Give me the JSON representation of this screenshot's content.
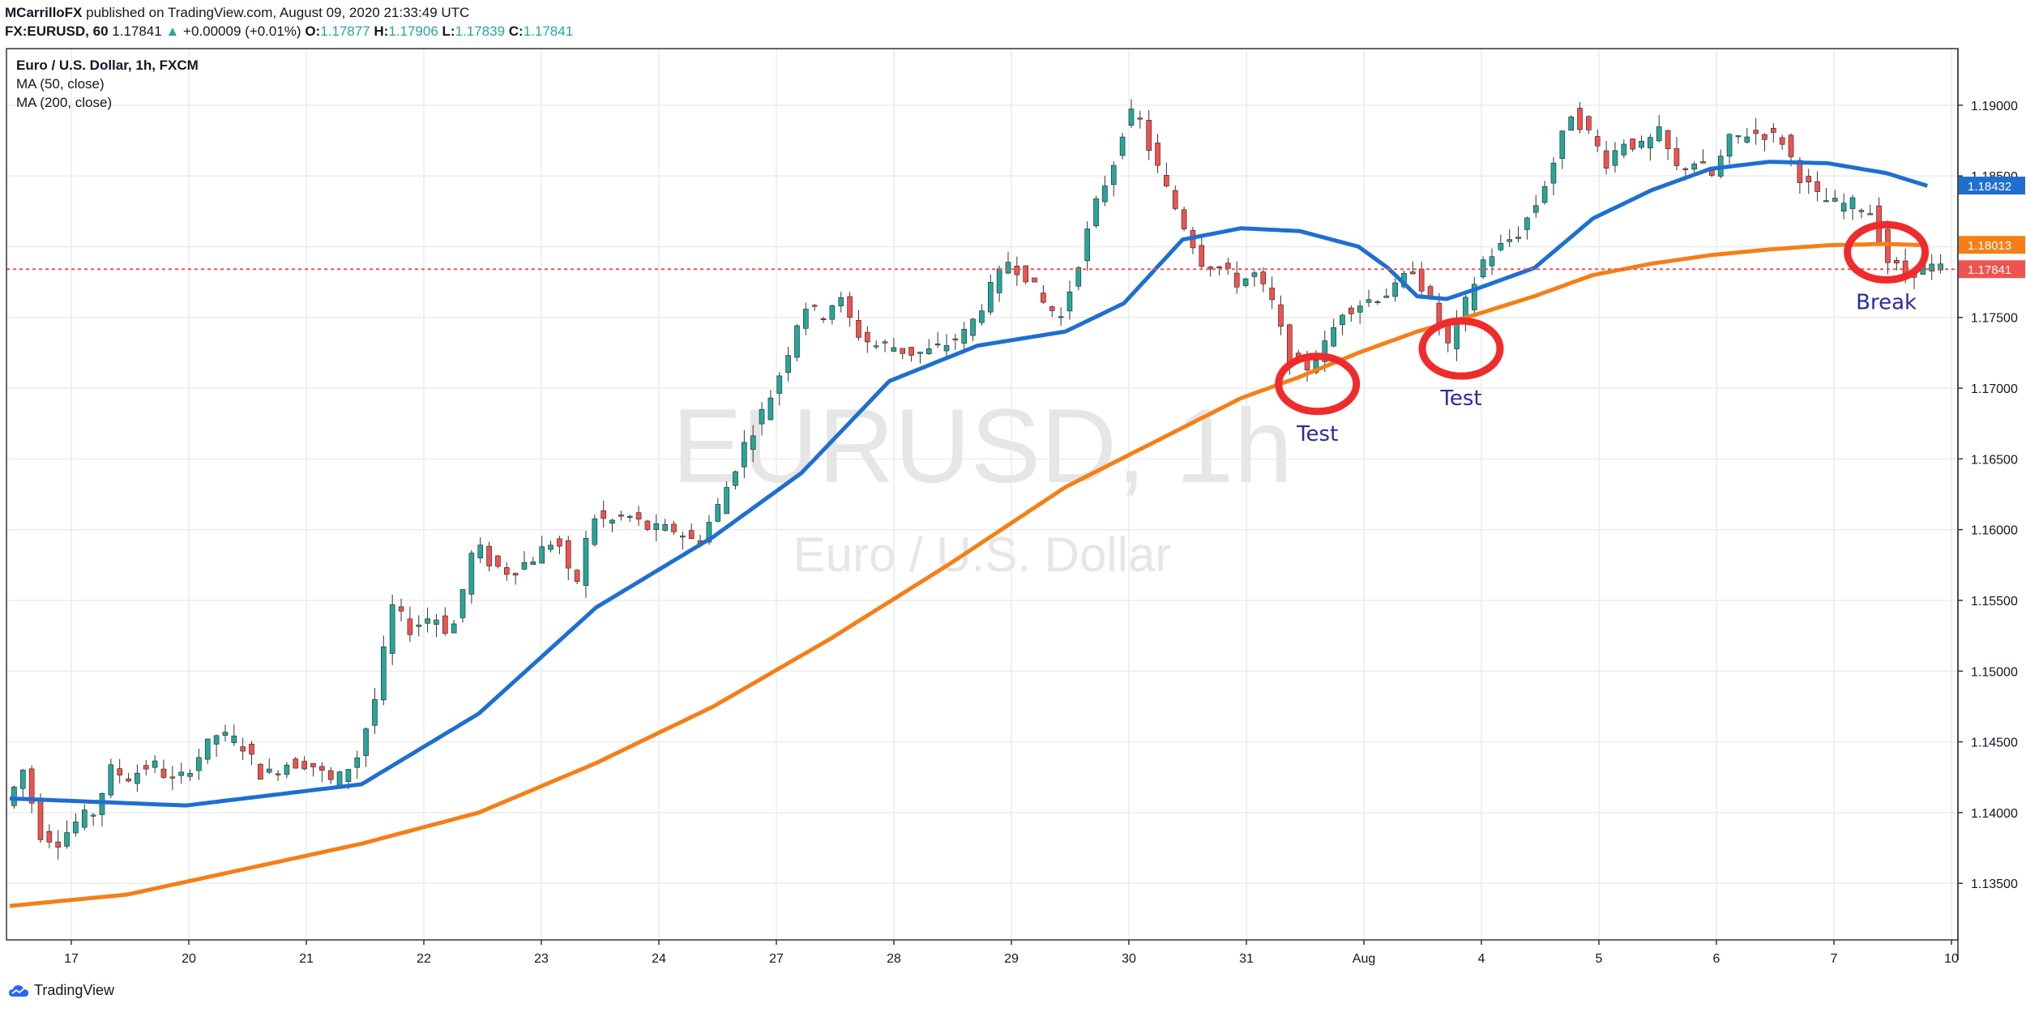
{
  "header": {
    "publisher": "MCarrilloFX",
    "published_text": "published on TradingView.com, August 09, 2020 21:33:49 UTC",
    "symbol": "FX:EURUSD, 60",
    "last": "1.17841",
    "change": "+0.00009 (+0.01%)",
    "open_label": "O:",
    "open": "1.17877",
    "high_label": "H:",
    "high": "1.17906",
    "low_label": "L:",
    "low": "1.17839",
    "close_label": "C:",
    "close": "1.17841"
  },
  "legend": {
    "title": "Euro / U.S. Dollar, 1h, FXCM",
    "ma50": "MA (50, close)",
    "ma200": "MA (200, close)"
  },
  "watermark": {
    "line1": "EURUSD, 1h",
    "line2": "Euro / U.S. Dollar"
  },
  "footer": {
    "brand": "TradingView",
    "logo_icon": "tradingview-cloud-icon"
  },
  "chart_data": {
    "type": "candlestick",
    "title": "Euro / U.S. Dollar, 1h, FXCM",
    "ylim": [
      1.131,
      1.194
    ],
    "grid": true,
    "x_ticks": [
      "17",
      "20",
      "21",
      "22",
      "23",
      "24",
      "27",
      "28",
      "29",
      "30",
      "31",
      "Aug",
      "4",
      "5",
      "6",
      "7",
      "10"
    ],
    "y_ticks": [
      "1.13500",
      "1.14000",
      "1.14500",
      "1.15000",
      "1.15500",
      "1.16000",
      "1.16500",
      "1.17000",
      "1.17500",
      "1.18000",
      "1.18500",
      "1.19000"
    ],
    "price_labels": [
      {
        "name": "MA (50, close)",
        "value": "1.18432",
        "color": "#1e6fd0"
      },
      {
        "name": "MA (200, close)",
        "value": "1.18013",
        "color": "#f57f17"
      },
      {
        "name": "Last price",
        "value": "1.17841",
        "color": "#ef5350"
      }
    ],
    "candle_colors": {
      "up": "#26a69a",
      "down": "#ef5350"
    },
    "close_path": [
      [
        0,
        1.1405
      ],
      [
        6,
        1.143
      ],
      [
        12,
        1.1385
      ],
      [
        18,
        1.138
      ],
      [
        25,
        1.1395
      ],
      [
        30,
        1.14
      ],
      [
        36,
        1.143
      ],
      [
        42,
        1.1425
      ],
      [
        50,
        1.1435
      ],
      [
        58,
        1.142
      ],
      [
        66,
        1.144
      ],
      [
        72,
        1.1455
      ],
      [
        80,
        1.145
      ],
      [
        88,
        1.1425
      ],
      [
        96,
        1.1435
      ],
      [
        104,
        1.1435
      ],
      [
        112,
        1.142
      ],
      [
        120,
        1.144
      ],
      [
        126,
        1.148
      ],
      [
        132,
        1.1545
      ],
      [
        138,
        1.153
      ],
      [
        146,
        1.154
      ],
      [
        152,
        1.1525
      ],
      [
        160,
        1.159
      ],
      [
        166,
        1.1575
      ],
      [
        172,
        1.157
      ],
      [
        180,
        1.158
      ],
      [
        188,
        1.1595
      ],
      [
        194,
        1.1555
      ],
      [
        200,
        1.161
      ],
      [
        206,
        1.1605
      ],
      [
        212,
        1.161
      ],
      [
        220,
        1.16
      ],
      [
        228,
        1.16
      ],
      [
        236,
        1.159
      ],
      [
        244,
        1.162
      ],
      [
        252,
        1.166
      ],
      [
        260,
        1.169
      ],
      [
        266,
        1.172
      ],
      [
        272,
        1.176
      ],
      [
        278,
        1.175
      ],
      [
        284,
        1.1765
      ],
      [
        290,
        1.174
      ],
      [
        296,
        1.173
      ],
      [
        302,
        1.173
      ],
      [
        308,
        1.1725
      ],
      [
        314,
        1.1725
      ],
      [
        320,
        1.173
      ],
      [
        328,
        1.174
      ],
      [
        336,
        1.177
      ],
      [
        342,
        1.179
      ],
      [
        348,
        1.178
      ],
      [
        354,
        1.176
      ],
      [
        360,
        1.175
      ],
      [
        366,
        1.179
      ],
      [
        372,
        1.183
      ],
      [
        378,
        1.186
      ],
      [
        382,
        1.189
      ],
      [
        386,
        1.1895
      ],
      [
        390,
        1.187
      ],
      [
        396,
        1.184
      ],
      [
        402,
        1.1815
      ],
      [
        408,
        1.179
      ],
      [
        414,
        1.1785
      ],
      [
        420,
        1.1775
      ],
      [
        426,
        1.178
      ],
      [
        432,
        1.176
      ],
      [
        438,
        1.172
      ],
      [
        444,
        1.1715
      ],
      [
        450,
        1.173
      ],
      [
        456,
        1.1755
      ],
      [
        462,
        1.176
      ],
      [
        468,
        1.1765
      ],
      [
        474,
        1.177
      ],
      [
        480,
        1.1785
      ],
      [
        486,
        1.176
      ],
      [
        492,
        1.173
      ],
      [
        498,
        1.176
      ],
      [
        504,
        1.179
      ],
      [
        510,
        1.18
      ],
      [
        516,
        1.181
      ],
      [
        522,
        1.183
      ],
      [
        528,
        1.186
      ],
      [
        534,
        1.1895
      ],
      [
        540,
        1.188
      ],
      [
        546,
        1.186
      ],
      [
        552,
        1.1875
      ],
      [
        558,
        1.187
      ],
      [
        564,
        1.188
      ],
      [
        570,
        1.1855
      ],
      [
        576,
        1.186
      ],
      [
        582,
        1.185
      ],
      [
        588,
        1.1875
      ],
      [
        594,
        1.188
      ],
      [
        600,
        1.188
      ],
      [
        606,
        1.1875
      ],
      [
        612,
        1.185
      ],
      [
        618,
        1.1835
      ],
      [
        624,
        1.183
      ],
      [
        630,
        1.183
      ],
      [
        636,
        1.1825
      ],
      [
        642,
        1.179
      ],
      [
        648,
        1.178
      ],
      [
        654,
        1.1786
      ],
      [
        660,
        1.1784
      ]
    ],
    "ma50": [
      [
        0,
        1.141
      ],
      [
        60,
        1.1405
      ],
      [
        120,
        1.142
      ],
      [
        160,
        1.147
      ],
      [
        200,
        1.1545
      ],
      [
        240,
        1.1595
      ],
      [
        270,
        1.164
      ],
      [
        300,
        1.1705
      ],
      [
        330,
        1.173
      ],
      [
        360,
        1.174
      ],
      [
        380,
        1.176
      ],
      [
        400,
        1.1805
      ],
      [
        420,
        1.1813
      ],
      [
        440,
        1.1811
      ],
      [
        460,
        1.18
      ],
      [
        470,
        1.1785
      ],
      [
        480,
        1.1765
      ],
      [
        490,
        1.1763
      ],
      [
        500,
        1.177
      ],
      [
        520,
        1.1785
      ],
      [
        540,
        1.182
      ],
      [
        560,
        1.184
      ],
      [
        580,
        1.1855
      ],
      [
        600,
        1.186
      ],
      [
        620,
        1.1859
      ],
      [
        640,
        1.1852
      ],
      [
        654,
        1.1843
      ]
    ],
    "ma200": [
      [
        0,
        1.1334
      ],
      [
        40,
        1.1342
      ],
      [
        80,
        1.136
      ],
      [
        120,
        1.1378
      ],
      [
        160,
        1.14
      ],
      [
        200,
        1.1435
      ],
      [
        240,
        1.1475
      ],
      [
        280,
        1.1523
      ],
      [
        320,
        1.1575
      ],
      [
        360,
        1.163
      ],
      [
        400,
        1.1672
      ],
      [
        420,
        1.1693
      ],
      [
        440,
        1.1708
      ],
      [
        460,
        1.1725
      ],
      [
        480,
        1.174
      ],
      [
        500,
        1.1752
      ],
      [
        520,
        1.1765
      ],
      [
        540,
        1.178
      ],
      [
        560,
        1.1788
      ],
      [
        580,
        1.1794
      ],
      [
        600,
        1.1798
      ],
      [
        620,
        1.1801
      ],
      [
        640,
        1.1802
      ],
      [
        654,
        1.1801
      ]
    ],
    "annotations": [
      {
        "label": "Test",
        "x": 446,
        "price": 1.1703
      },
      {
        "label": "Test",
        "x": 495,
        "price": 1.1728
      },
      {
        "label": "Break",
        "x": 640,
        "price": 1.1796
      }
    ],
    "annotation_color": "#ef2b2b",
    "annotation_text_color": "#2b2b9e"
  }
}
